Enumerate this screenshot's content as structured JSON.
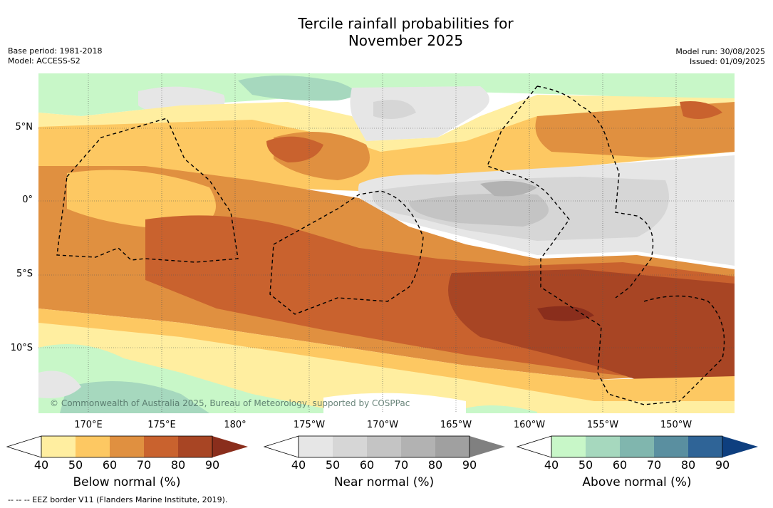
{
  "title": {
    "line1": "Tercile rainfall probabilities for",
    "line2": "November 2025"
  },
  "meta_left": {
    "base_period": "Base period: 1981-2018",
    "model": "Model: ACCESS-S2"
  },
  "meta_right": {
    "model_run": "Model run: 30/08/2025",
    "issued": "Issued: 01/09/2025"
  },
  "lat_labels": [
    "5°N",
    "0°",
    "5°S",
    "10°S"
  ],
  "lon_labels": [
    "170°E",
    "175°E",
    "180°",
    "175°W",
    "170°W",
    "165°W",
    "160°W",
    "155°W",
    "150°W"
  ],
  "credit": "© Commonwealth of Australia 2025, Bureau of Meteorology, supported by COSPPac",
  "colorbars": [
    {
      "title": "Below normal (%)",
      "ticks": [
        "40",
        "50",
        "60",
        "70",
        "80",
        "90"
      ],
      "colors": [
        "#ffeea0",
        "#fdc862",
        "#e09040",
        "#c9622e",
        "#a84524",
        "#8a2e1c"
      ]
    },
    {
      "title": "Near normal (%)",
      "ticks": [
        "40",
        "50",
        "60",
        "70",
        "80",
        "90"
      ],
      "colors": [
        "#e6e6e6",
        "#d6d6d6",
        "#c4c4c4",
        "#b2b2b2",
        "#a0a0a0",
        "#808080"
      ]
    },
    {
      "title": "Above normal (%)",
      "ticks": [
        "40",
        "50",
        "60",
        "70",
        "80",
        "90"
      ],
      "colors": [
        "#c8f7c8",
        "#a6d8be",
        "#80b6ae",
        "#5a8fa0",
        "#2f6497",
        "#0e3f7f"
      ]
    }
  ],
  "footnote": "-- -- -- EEZ border V11 (Flanders Marine Institute, 2019)."
}
